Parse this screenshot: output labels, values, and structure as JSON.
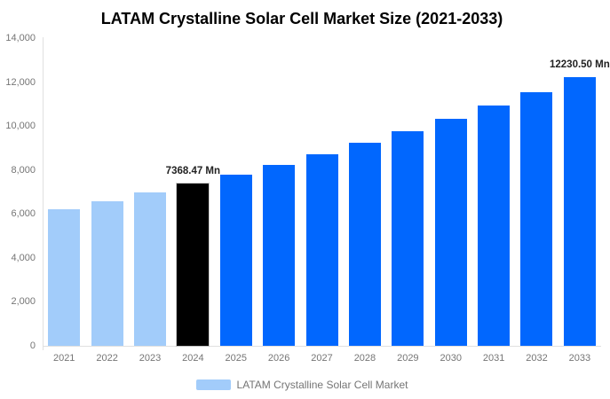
{
  "chart_data": {
    "type": "bar",
    "title": "LATAM Crystalline Solar Cell Market Size (2021-2033)",
    "unit": "Mn",
    "categories": [
      "2021",
      "2022",
      "2023",
      "2024",
      "2025",
      "2026",
      "2027",
      "2028",
      "2029",
      "2030",
      "2031",
      "2032",
      "2033"
    ],
    "values": [
      6224,
      6584,
      6965,
      7368.47,
      7795,
      8246,
      8723,
      9228,
      9762,
      10328,
      10925,
      11558,
      12230.5
    ],
    "ylim": [
      0,
      14000
    ],
    "ytick_step": 2000,
    "ytick_labels": [
      "0",
      "2,000",
      "4,000",
      "6,000",
      "8,000",
      "10,000",
      "12,000",
      "14,000"
    ],
    "xlabel": "",
    "ylabel": "",
    "grid": false,
    "legend_position": "bottom",
    "legend": [
      {
        "label": "LATAM Crystalline Solar Cell Market",
        "color": "#a2ccfa"
      }
    ],
    "bar_colors": [
      "#a2ccfa",
      "#a2ccfa",
      "#a2ccfa",
      "#000000",
      "#0167fe",
      "#0167fe",
      "#0167fe",
      "#0167fe",
      "#0167fe",
      "#0167fe",
      "#0167fe",
      "#0167fe",
      "#0167fe"
    ],
    "highlight_category": "2024",
    "annotations": [
      {
        "category": "2024",
        "text": "7368.47 Mn"
      },
      {
        "category": "2033",
        "text": "12230.50 Mn"
      }
    ]
  },
  "colors": {
    "background": "#ffffff",
    "axis_line": "#e0e0e0",
    "tick_text": "#757575",
    "title_text": "#000000",
    "annotation_text": "#222222",
    "past_bars": "#a2ccfa",
    "highlight_bar": "#000000",
    "future_bars": "#0167fe"
  }
}
